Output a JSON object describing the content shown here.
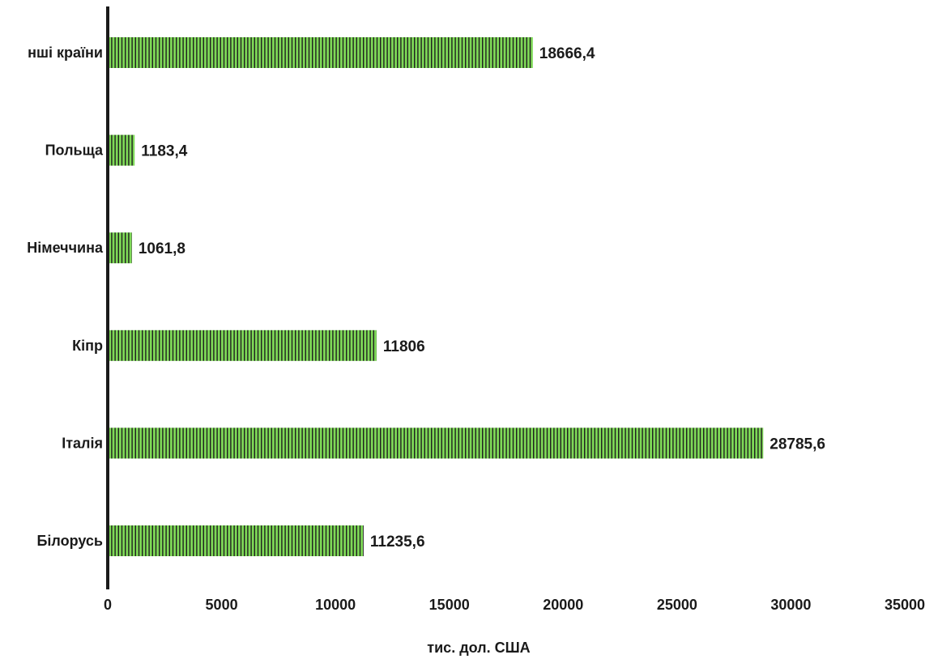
{
  "chart_data": {
    "type": "bar",
    "orientation": "horizontal",
    "categories": [
      "Білорусь",
      "Італія",
      "Кіпр",
      "Німеччина",
      "Польща",
      "нші країни"
    ],
    "values": [
      11235.6,
      28785.6,
      11806,
      1061.8,
      1183.4,
      18666.4
    ],
    "value_labels": [
      "11235,6",
      "28785,6",
      "11806",
      "1061,8",
      "1183,4",
      "18666,4"
    ],
    "xticks": [
      0,
      5000,
      10000,
      15000,
      20000,
      25000,
      30000,
      35000
    ],
    "xlim": [
      0,
      35000
    ],
    "xlabel": "тис. дол. США",
    "ylabel": "",
    "title": "",
    "grid": false,
    "bar_color": "#7ed957",
    "bar_hatch_color": "#1f1f1f"
  }
}
